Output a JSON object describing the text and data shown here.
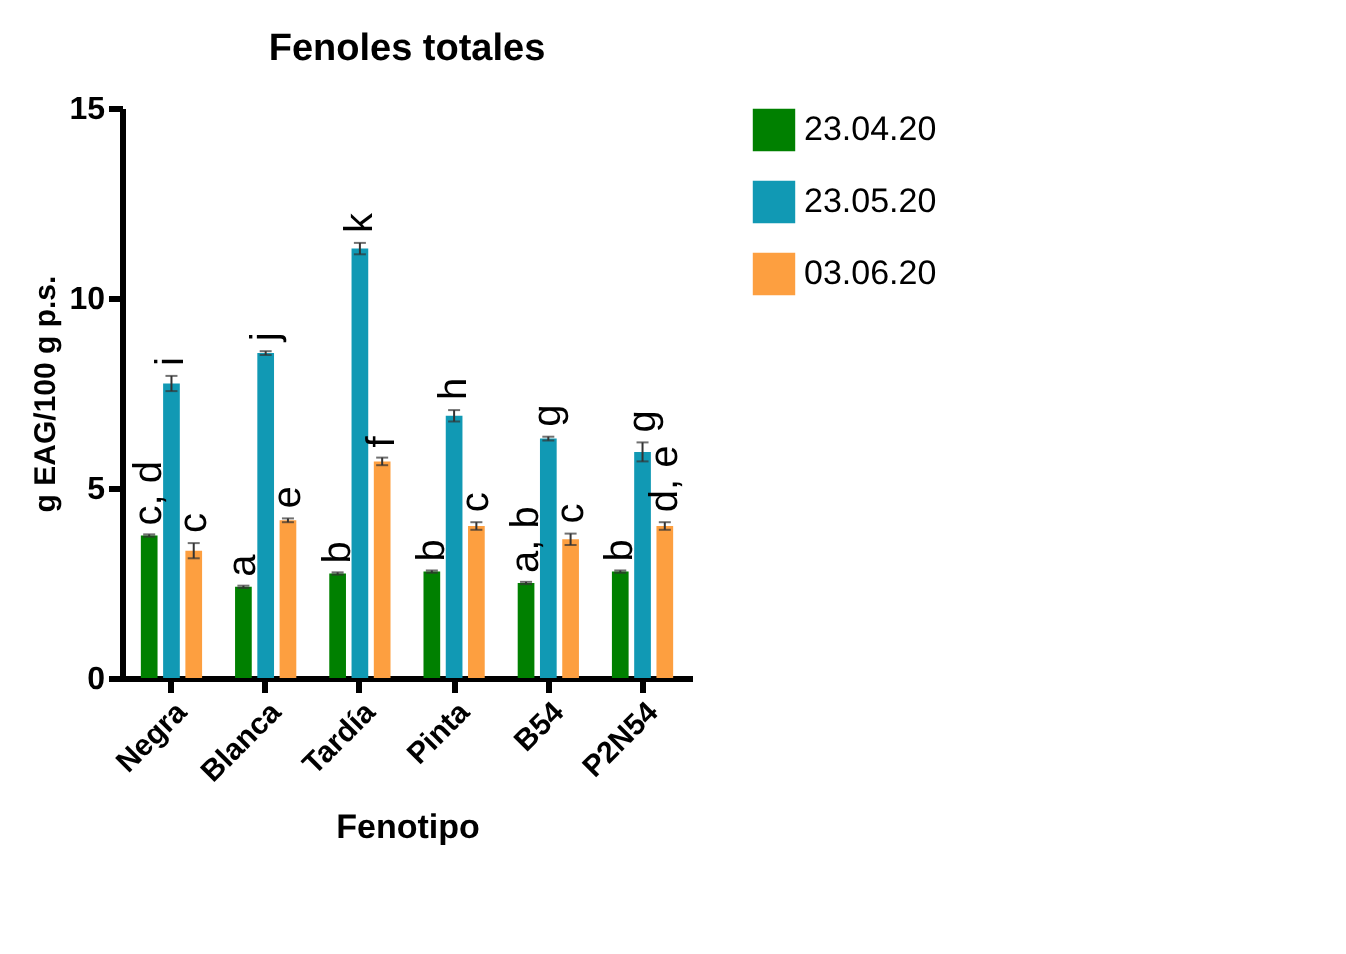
{
  "chart_data": {
    "type": "bar",
    "title": "Fenoles totales",
    "xlabel": "Fenotipo",
    "ylabel": "g EAG/100 g p.s.",
    "categories": [
      "Negra",
      "Blanca",
      "Tardía",
      "Pinta",
      "B54",
      "P2N54"
    ],
    "series": [
      {
        "name": "23.04.20",
        "color": "#008000",
        "values": [
          3.75,
          2.4,
          2.75,
          2.8,
          2.5,
          2.8
        ],
        "errors": [
          0.03,
          0.03,
          0.03,
          0.03,
          0.03,
          0.03
        ]
      },
      {
        "name": "23.05.20",
        "color": "#1199b4",
        "values": [
          7.75,
          8.55,
          11.3,
          6.9,
          6.3,
          5.95
        ],
        "errors": [
          0.2,
          0.05,
          0.15,
          0.15,
          0.05,
          0.25
        ]
      },
      {
        "name": "03.06.20",
        "color": "#fd9f40",
        "values": [
          3.35,
          4.15,
          5.7,
          4.0,
          3.65,
          4.0
        ],
        "errors": [
          0.2,
          0.05,
          0.1,
          0.1,
          0.15,
          0.1
        ]
      }
    ],
    "annotations": [
      {
        "text": "c, d",
        "x": "Negra",
        "y": 3.75
      },
      {
        "text": "i",
        "x": "Negra",
        "y": 7.95
      },
      {
        "text": "c",
        "x": "Negra",
        "y": 3.55
      },
      {
        "text": "a",
        "x": "Blanca",
        "y": 2.4
      },
      {
        "text": "j",
        "x": "Blanca",
        "y": 8.6
      },
      {
        "text": "e",
        "x": "Blanca",
        "y": 4.2
      },
      {
        "text": "b",
        "x": "Tardía",
        "y": 2.75
      },
      {
        "text": "k",
        "x": "Tardía",
        "y": 11.45
      },
      {
        "text": "f",
        "x": "Tardía",
        "y": 5.8
      },
      {
        "text": "b",
        "x": "Pinta",
        "y": 2.8
      },
      {
        "text": "h",
        "x": "Pinta",
        "y": 7.05
      },
      {
        "text": "c",
        "x": "Pinta",
        "y": 4.1
      },
      {
        "text": "a, b",
        "x": "B54",
        "y": 2.5
      },
      {
        "text": "g",
        "x": "B54",
        "y": 6.35
      },
      {
        "text": "c",
        "x": "B54",
        "y": 3.8
      },
      {
        "text": "b",
        "x": "P2N54",
        "y": 2.8
      },
      {
        "text": "g",
        "x": "P2N54",
        "y": 6.2
      },
      {
        "text": "d, e",
        "x": "P2N54",
        "y": 4.1
      }
    ],
    "ylim": [
      0,
      15
    ],
    "yticks": [
      0,
      5,
      10,
      15
    ],
    "grid": false,
    "legend": "right"
  }
}
